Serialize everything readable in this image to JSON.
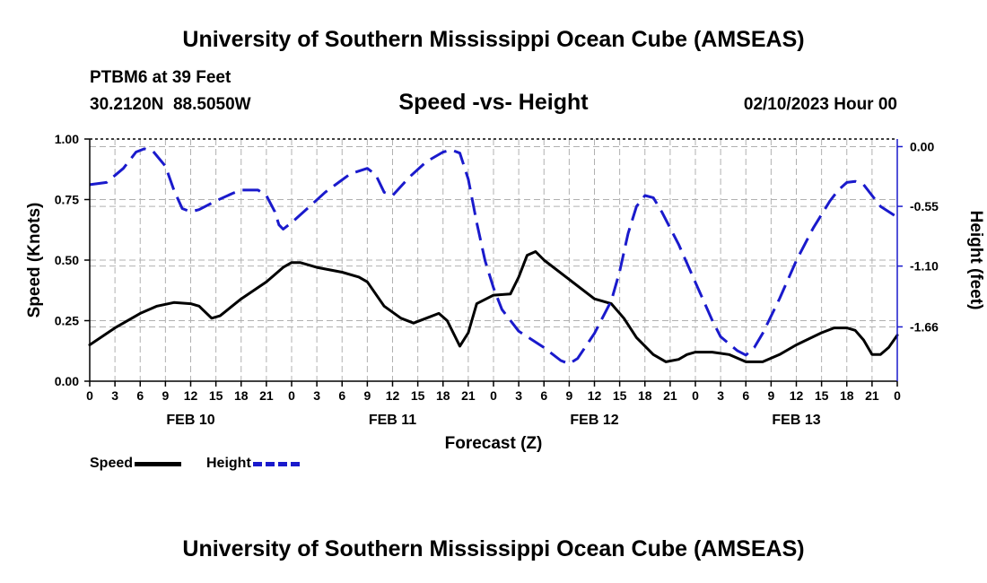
{
  "header": {
    "title": "University of Southern Mississippi Ocean Cube (AMSEAS)",
    "station": "PTBM6 at 39 Feet",
    "coords": "30.2120N  88.5050W",
    "subtitle": "Speed -vs- Height",
    "date": "02/10/2023 Hour 00",
    "bottom_title": "University of Southern Mississippi Ocean Cube (AMSEAS)"
  },
  "legend": {
    "speed_label": "Speed",
    "height_label": "Height"
  },
  "colors": {
    "speed": "#000000",
    "height": "#1a1acc",
    "grid": "#b0b0b0",
    "axis": "#000000"
  },
  "chart_data": {
    "type": "line",
    "title": "Speed -vs- Height",
    "xlabel": "Forecast (Z)",
    "ylabel_left": "Speed (Knots)",
    "ylabel_right": "Height (feet)",
    "xlim": [
      0,
      96
    ],
    "ylim_left": [
      0,
      1.0
    ],
    "ylim_right": [
      -2.16,
      0.07
    ],
    "x_ticks": [
      0,
      3,
      6,
      9,
      12,
      15,
      18,
      21,
      24,
      27,
      30,
      33,
      36,
      39,
      42,
      45,
      48,
      51,
      54,
      57,
      60,
      63,
      66,
      69,
      72,
      75,
      78,
      81,
      84,
      87,
      90,
      93,
      96
    ],
    "x_tick_labels": [
      "0",
      "3",
      "6",
      "9",
      "12",
      "15",
      "18",
      "21",
      "0",
      "3",
      "6",
      "9",
      "12",
      "15",
      "18",
      "21",
      "0",
      "3",
      "6",
      "9",
      "12",
      "15",
      "18",
      "21",
      "0",
      "3",
      "6",
      "9",
      "12",
      "15",
      "18",
      "21",
      "0"
    ],
    "day_labels": [
      {
        "x": 12,
        "label": "FEB 10"
      },
      {
        "x": 36,
        "label": "FEB 11"
      },
      {
        "x": 60,
        "label": "FEB 12"
      },
      {
        "x": 84,
        "label": "FEB 13"
      }
    ],
    "left_ticks": [
      {
        "v": 0.0,
        "label": "0.00"
      },
      {
        "v": 0.25,
        "label": "0.25"
      },
      {
        "v": 0.5,
        "label": "0.50"
      },
      {
        "v": 0.75,
        "label": "0.75"
      },
      {
        "v": 1.0,
        "label": "1.00"
      }
    ],
    "right_ticks": [
      {
        "v": 0.0,
        "label": "0.00"
      },
      {
        "v": -0.55,
        "label": "-0.55"
      },
      {
        "v": -1.1,
        "label": "-1.10"
      },
      {
        "v": -1.66,
        "label": "-1.66"
      }
    ],
    "series": [
      {
        "name": "Speed",
        "axis": "left",
        "style": "solid",
        "points": [
          [
            0,
            0.15
          ],
          [
            3,
            0.22
          ],
          [
            6,
            0.28
          ],
          [
            8,
            0.31
          ],
          [
            10,
            0.325
          ],
          [
            12,
            0.32
          ],
          [
            13,
            0.31
          ],
          [
            14.5,
            0.26
          ],
          [
            15.5,
            0.27
          ],
          [
            18,
            0.34
          ],
          [
            21,
            0.41
          ],
          [
            23,
            0.47
          ],
          [
            24,
            0.49
          ],
          [
            25,
            0.49
          ],
          [
            27,
            0.47
          ],
          [
            30,
            0.45
          ],
          [
            32,
            0.43
          ],
          [
            33,
            0.41
          ],
          [
            35,
            0.31
          ],
          [
            37,
            0.26
          ],
          [
            38.5,
            0.24
          ],
          [
            40,
            0.26
          ],
          [
            41.5,
            0.28
          ],
          [
            42.5,
            0.25
          ],
          [
            44,
            0.145
          ],
          [
            45,
            0.2
          ],
          [
            46,
            0.32
          ],
          [
            48,
            0.355
          ],
          [
            50,
            0.36
          ],
          [
            51,
            0.43
          ],
          [
            52,
            0.52
          ],
          [
            53,
            0.535
          ],
          [
            54,
            0.5
          ],
          [
            57,
            0.42
          ],
          [
            60,
            0.34
          ],
          [
            62,
            0.32
          ],
          [
            63.5,
            0.26
          ],
          [
            65,
            0.18
          ],
          [
            67,
            0.11
          ],
          [
            68.5,
            0.08
          ],
          [
            70,
            0.09
          ],
          [
            71,
            0.11
          ],
          [
            72,
            0.12
          ],
          [
            74,
            0.12
          ],
          [
            76,
            0.11
          ],
          [
            78,
            0.08
          ],
          [
            80,
            0.08
          ],
          [
            82,
            0.11
          ],
          [
            84,
            0.15
          ],
          [
            87,
            0.2
          ],
          [
            88.5,
            0.22
          ],
          [
            90,
            0.22
          ],
          [
            91,
            0.21
          ],
          [
            92,
            0.17
          ],
          [
            93,
            0.11
          ],
          [
            94,
            0.11
          ],
          [
            95,
            0.14
          ],
          [
            96,
            0.19
          ]
        ]
      },
      {
        "name": "Height",
        "axis": "right",
        "style": "dashed",
        "points": [
          [
            0,
            -0.35
          ],
          [
            2,
            -0.33
          ],
          [
            4,
            -0.2
          ],
          [
            5.5,
            -0.05
          ],
          [
            6.5,
            -0.02
          ],
          [
            7.5,
            -0.04
          ],
          [
            9,
            -0.18
          ],
          [
            10,
            -0.4
          ],
          [
            11,
            -0.57
          ],
          [
            12,
            -0.6
          ],
          [
            13,
            -0.58
          ],
          [
            15,
            -0.5
          ],
          [
            17,
            -0.43
          ],
          [
            18,
            -0.4
          ],
          [
            20,
            -0.4
          ],
          [
            21,
            -0.45
          ],
          [
            22,
            -0.6
          ],
          [
            22.5,
            -0.72
          ],
          [
            23,
            -0.76
          ],
          [
            24,
            -0.7
          ],
          [
            26,
            -0.56
          ],
          [
            28,
            -0.42
          ],
          [
            31,
            -0.25
          ],
          [
            33,
            -0.2
          ],
          [
            34,
            -0.26
          ],
          [
            35,
            -0.42
          ],
          [
            36,
            -0.45
          ],
          [
            38,
            -0.28
          ],
          [
            40,
            -0.14
          ],
          [
            42,
            -0.05
          ],
          [
            43,
            -0.03
          ],
          [
            44,
            -0.06
          ],
          [
            45,
            -0.3
          ],
          [
            46,
            -0.7
          ],
          [
            47,
            -1.05
          ],
          [
            48,
            -1.3
          ],
          [
            49,
            -1.5
          ],
          [
            51,
            -1.7
          ],
          [
            54,
            -1.85
          ],
          [
            56,
            -1.97
          ],
          [
            57,
            -2.0
          ],
          [
            58,
            -1.95
          ],
          [
            60,
            -1.72
          ],
          [
            62,
            -1.42
          ],
          [
            63,
            -1.15
          ],
          [
            64,
            -0.8
          ],
          [
            65,
            -0.55
          ],
          [
            66,
            -0.45
          ],
          [
            67,
            -0.47
          ],
          [
            68,
            -0.6
          ],
          [
            70,
            -0.9
          ],
          [
            72,
            -1.25
          ],
          [
            74,
            -1.6
          ],
          [
            75,
            -1.75
          ],
          [
            77,
            -1.88
          ],
          [
            78,
            -1.92
          ],
          [
            79,
            -1.85
          ],
          [
            80,
            -1.72
          ],
          [
            82,
            -1.4
          ],
          [
            84,
            -1.05
          ],
          [
            86,
            -0.75
          ],
          [
            88,
            -0.5
          ],
          [
            89,
            -0.4
          ],
          [
            90,
            -0.33
          ],
          [
            91,
            -0.32
          ],
          [
            92,
            -0.35
          ],
          [
            93,
            -0.45
          ],
          [
            94,
            -0.55
          ],
          [
            95,
            -0.6
          ],
          [
            96,
            -0.65
          ]
        ]
      }
    ]
  }
}
